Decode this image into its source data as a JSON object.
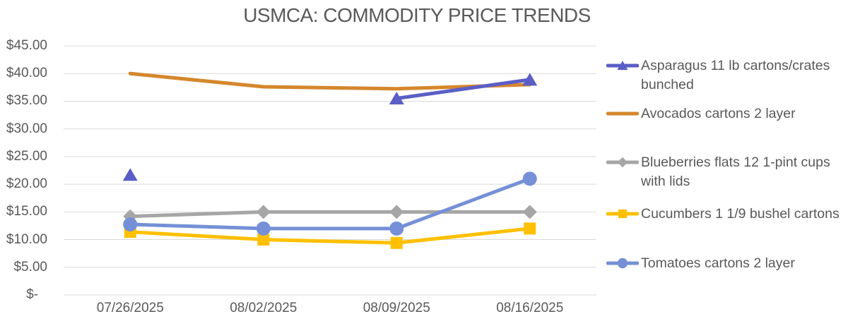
{
  "chart_data": {
    "type": "line",
    "title": "USMCA: COMMODITY PRICE TRENDS",
    "xlabel": "",
    "ylabel": "",
    "categories": [
      "07/26/2025",
      "08/02/2025",
      "08/09/2025",
      "08/16/2025"
    ],
    "y_tick_labels": [
      "$45.00",
      "$40.00",
      "$35.00",
      "$30.00",
      "$25.00",
      "$20.00",
      "$15.00",
      "$10.00",
      "$5.00",
      "$-"
    ],
    "ylim": [
      0,
      45
    ],
    "y_step": 5,
    "grid": true,
    "legend_position": "right",
    "series": [
      {
        "name": "Asparagus 11 lb cartons/crates bunched",
        "color": "#5A5EC6",
        "marker": "triangle",
        "values": [
          21.7,
          null,
          35.5,
          38.9
        ]
      },
      {
        "name": "Avocados cartons 2 layer",
        "color": "#D5872C",
        "marker": "none",
        "values": [
          40.0,
          37.6,
          37.25,
          38.0
        ]
      },
      {
        "name": "Blueberries flats 12 1-pint cups with lids",
        "color": "#A6A6A6",
        "marker": "diamond",
        "values": [
          14.2,
          15.0,
          15.0,
          15.0
        ]
      },
      {
        "name": "Cucumbers 1 1/9 bushel cartons",
        "color": "#FFC000",
        "marker": "square",
        "values": [
          11.4,
          10.0,
          9.4,
          12.0
        ]
      },
      {
        "name": "Tomatoes cartons 2 layer",
        "color": "#7590D6",
        "marker": "circle",
        "values": [
          12.75,
          12.0,
          12.0,
          21.0
        ]
      }
    ],
    "draw_order": [
      1,
      2,
      3,
      4,
      0
    ],
    "colors": {
      "axis_text": "#595959",
      "title_text": "#595959",
      "gridline": "#D9D9D9",
      "background": "#FFFFFF"
    }
  }
}
